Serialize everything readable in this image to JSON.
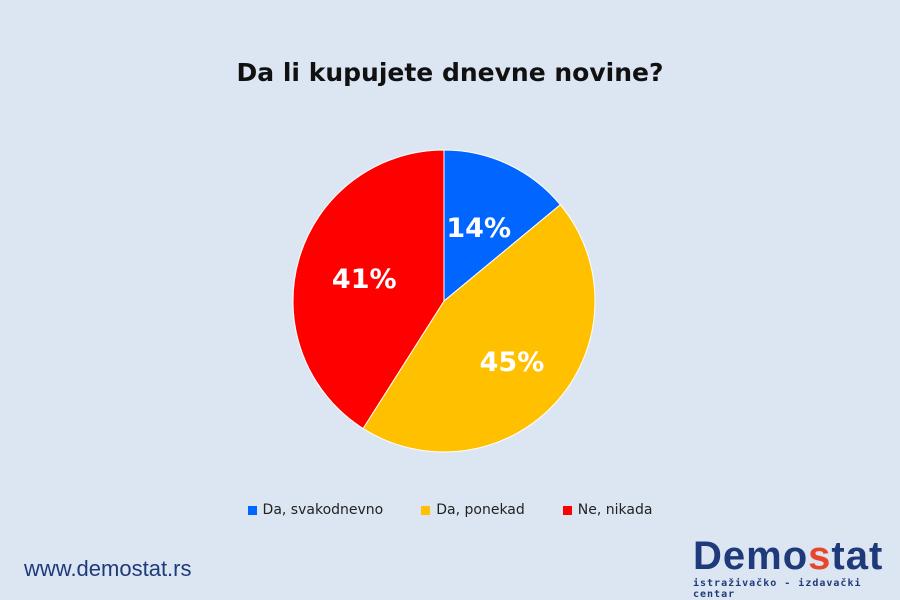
{
  "chart_data": {
    "type": "pie",
    "title": "Da li kupujete dnevne novine?",
    "slices": [
      {
        "name": "Da, svakodnevno",
        "value": 14,
        "label": "14%",
        "color": "#0066ff"
      },
      {
        "name": "Da, ponekad",
        "value": 45,
        "label": "45%",
        "color": "#ffc000"
      },
      {
        "name": "Ne, nikada",
        "value": 41,
        "label": "41%",
        "color": "#ff0000"
      }
    ],
    "legend_position": "bottom"
  },
  "footer": {
    "website": "www.demostat.rs",
    "logo_prefix": "Demo",
    "logo_accent": "s",
    "logo_suffix": "tat",
    "logo_tagline": "istraživačko - izdavački centar"
  }
}
